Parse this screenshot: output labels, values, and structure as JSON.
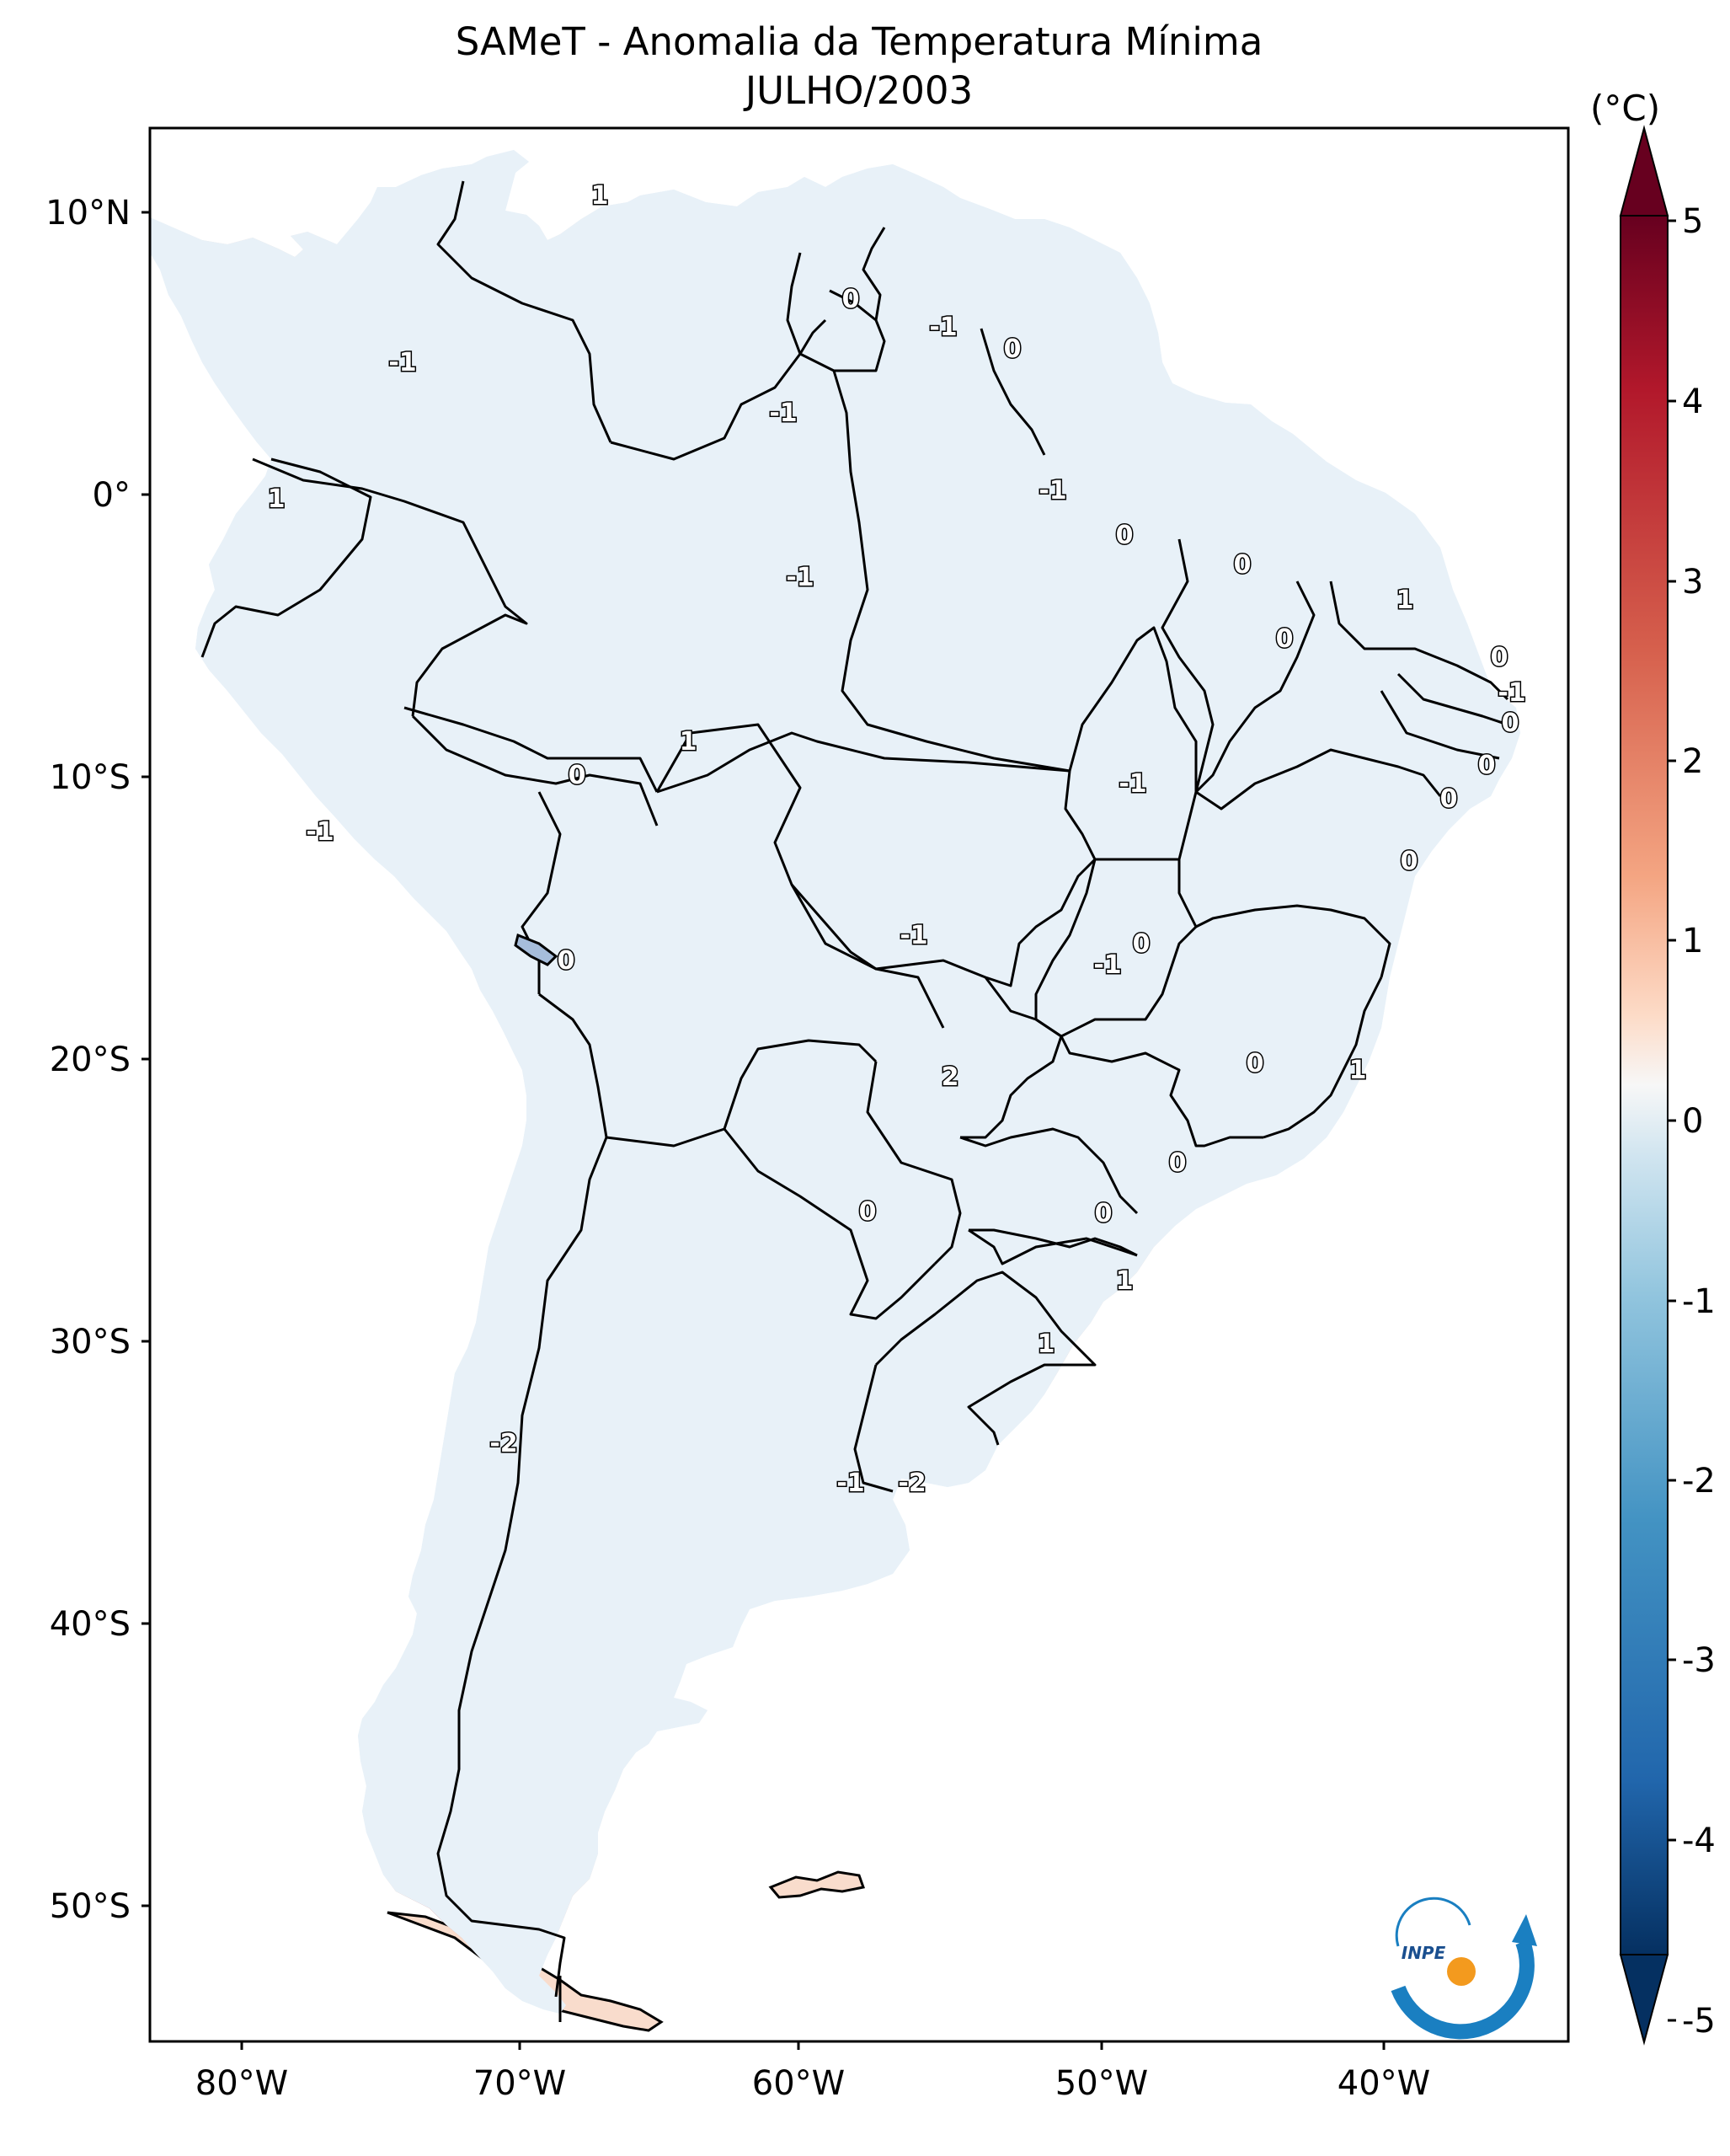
{
  "title": "SAMeT - Anomalia da Temperatura Mínima",
  "subtitle": "JULHO/2003",
  "colorbar": {
    "unit": "(°C)",
    "ticks": [
      "5",
      "4",
      "3",
      "2",
      "1",
      "0",
      "-1",
      "-2",
      "-3",
      "-4",
      "-5"
    ],
    "range": [
      -5,
      5
    ],
    "colormap": "RdBu_r",
    "extend": "both",
    "colors": {
      "max": "#67001f",
      "high": "#d6604d",
      "mid": "#f7f7f7",
      "low": "#4393c3",
      "min": "#053061"
    }
  },
  "axes": {
    "lat_ticks": [
      "10°N",
      "0°",
      "10°S",
      "20°S",
      "30°S",
      "40°S",
      "50°S"
    ],
    "lon_ticks": [
      "80°W",
      "70°W",
      "60°W",
      "50°W",
      "40°W"
    ]
  },
  "contour_labels": [
    "1",
    "0",
    "-1",
    "0",
    "-1",
    "-1",
    "-1",
    "0",
    "0",
    "1",
    "-1",
    "0",
    "1",
    "-1",
    "0",
    "0",
    "-1",
    "0",
    "0",
    "1",
    "-1",
    "0",
    "0",
    "-1",
    "0",
    "-1",
    "-2",
    "0",
    "0",
    "0",
    "2",
    "1",
    "0",
    "0",
    "0",
    "1",
    "1",
    "-2",
    "-1",
    "-2"
  ],
  "logo": {
    "text": "INPE",
    "colors": {
      "arc": "#1a7fc1",
      "dot": "#f39a1e"
    }
  }
}
